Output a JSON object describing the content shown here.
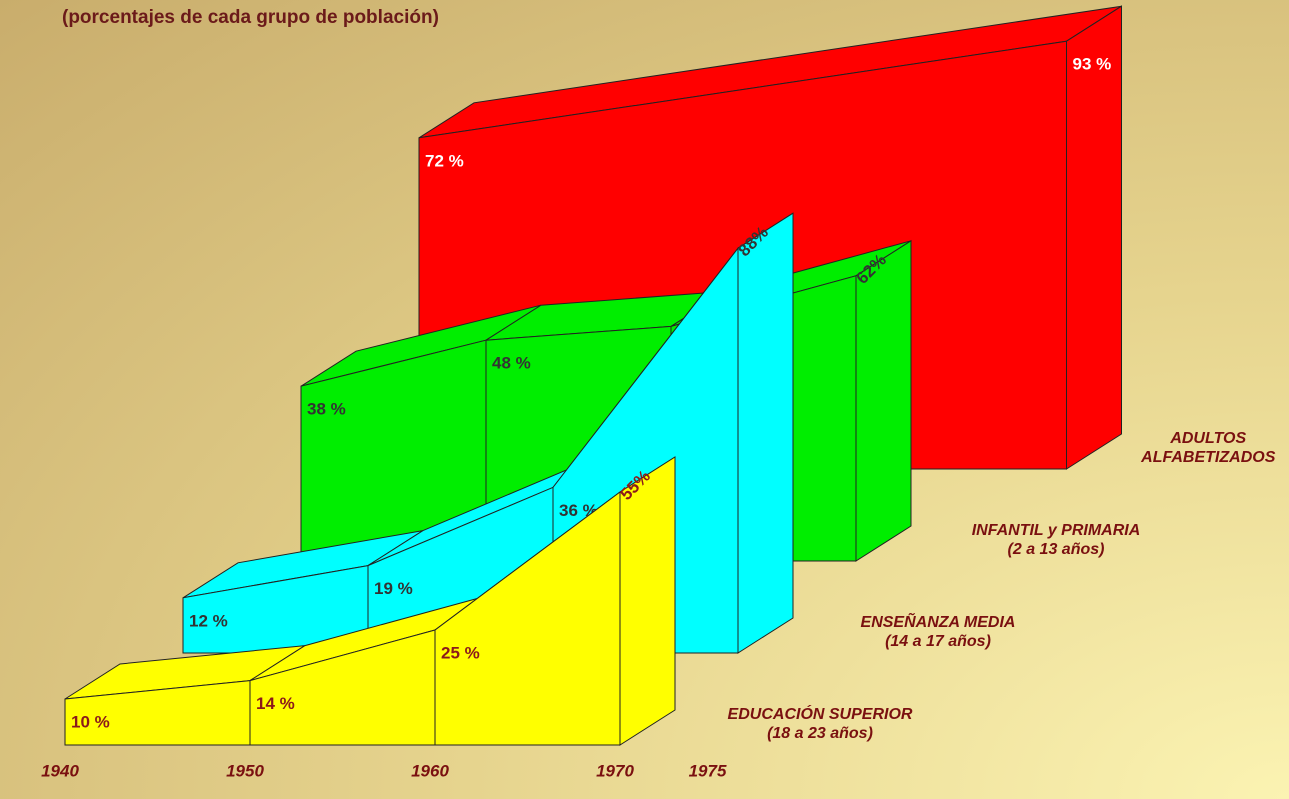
{
  "chart_data": {
    "type": "area",
    "subtitle": "(porcentajes de cada grupo de población)",
    "x": [
      1940,
      1950,
      1960,
      1970,
      1975
    ],
    "series": [
      {
        "name": "EDUCACIÓN SUPERIOR",
        "note": "(18 a 23 años)",
        "color": "#ffff00",
        "label_color": "#8b1a1a",
        "x": [
          1940,
          1950,
          1960,
          1970
        ],
        "values": [
          10,
          14,
          25,
          55
        ],
        "value_labels": [
          "10 %",
          "14 %",
          "25 %",
          "55%"
        ]
      },
      {
        "name": "ENSEÑANZA MEDIA",
        "note": "(14 a 17 años)",
        "color": "#00ffff",
        "label_color": "#333333",
        "x": [
          1940,
          1950,
          1960,
          1970
        ],
        "values": [
          12,
          19,
          36,
          88
        ],
        "value_labels": [
          "12 %",
          "19 %",
          "36 %",
          "88%"
        ]
      },
      {
        "name": "INFANTIL y PRIMARIA",
        "note": "(2 a 13 años)",
        "color": "#00ee00",
        "label_color": "#333333",
        "x": [
          1940,
          1950,
          1960,
          1970
        ],
        "values": [
          38,
          48,
          51,
          62
        ],
        "value_labels": [
          "38 %",
          "48 %",
          "51 %",
          "62%"
        ]
      },
      {
        "name": "ADULTOS ALFABETIZADOS",
        "color": "#ff0000",
        "label_color": "#ffffff",
        "x": [
          1940,
          1975
        ],
        "values": [
          72,
          93
        ],
        "value_labels": [
          "72 %",
          "93 %"
        ]
      }
    ]
  }
}
